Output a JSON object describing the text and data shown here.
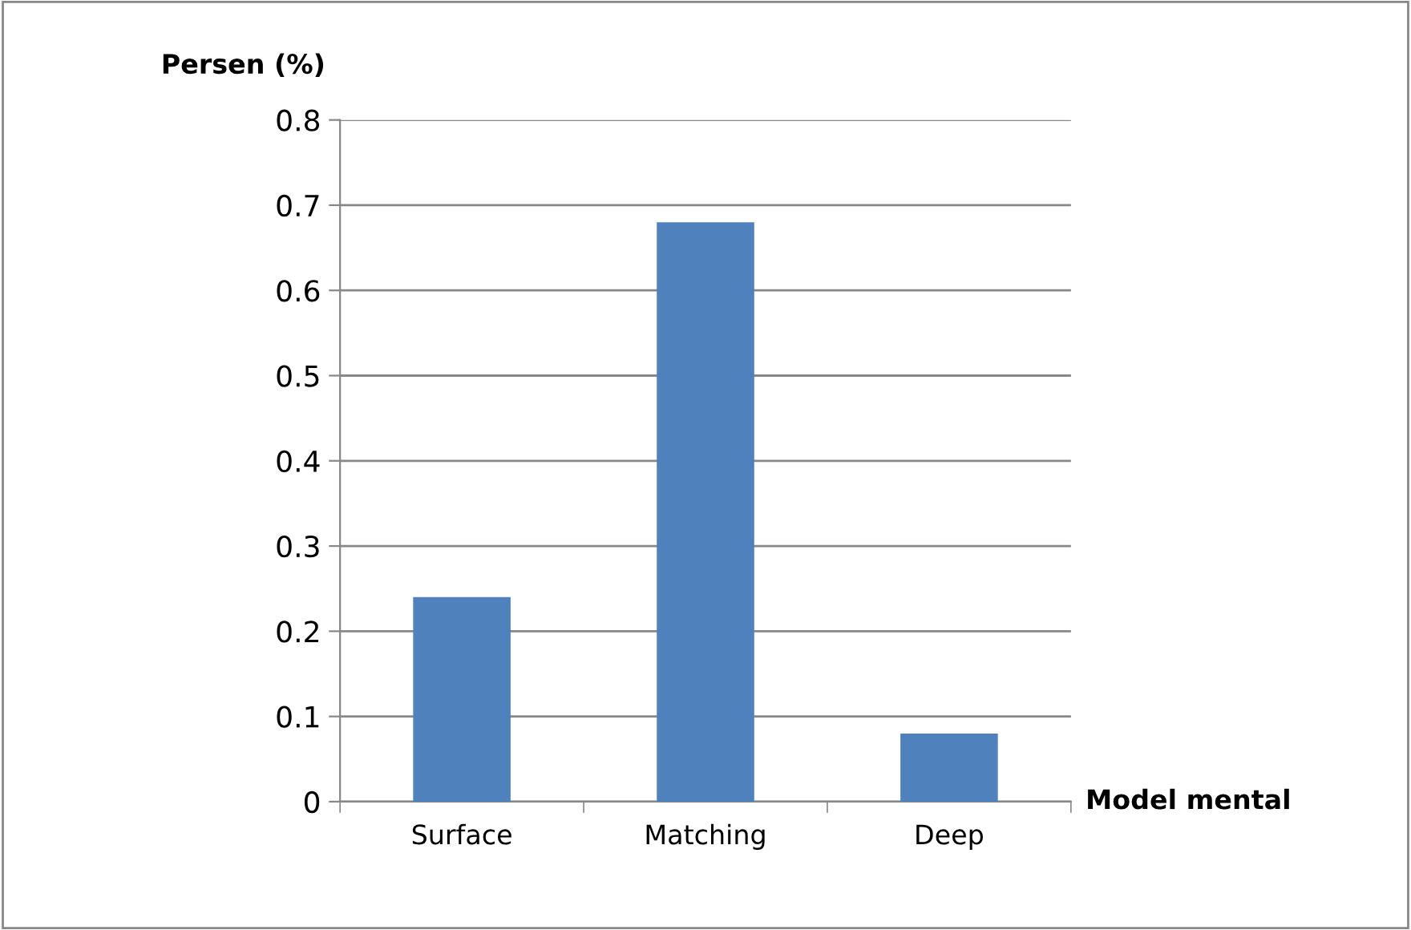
{
  "chart_data": {
    "type": "bar",
    "ylabel": "Persen (%)",
    "xlabel": "Model mental",
    "categories": [
      "Surface",
      "Matching",
      "Deep"
    ],
    "values": [
      0.24,
      0.68,
      0.08
    ],
    "color": "#4f81bd",
    "ylim": [
      0,
      0.8
    ],
    "yticks": [
      0,
      0.1,
      0.2,
      0.3,
      0.4,
      0.5,
      0.6,
      0.7,
      0.8
    ],
    "grid": "y",
    "legend": false
  }
}
